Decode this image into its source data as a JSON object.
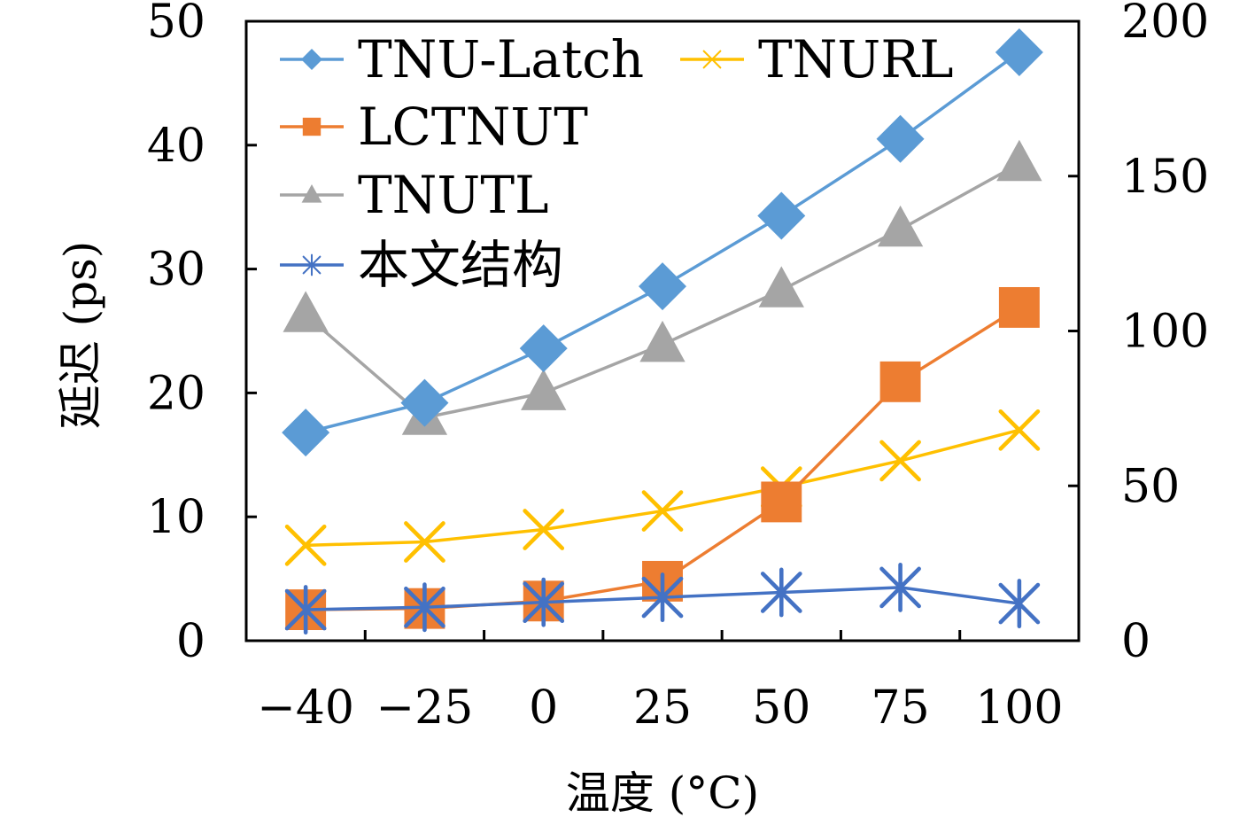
{
  "chart_data": {
    "type": "line",
    "categories": [
      "−40",
      "−25",
      "0",
      "25",
      "50",
      "75",
      "100"
    ],
    "xlabel": "温度 (°C)",
    "ylabel": "延迟 (ps)",
    "ylim": [
      0,
      50
    ],
    "y_ticks": [
      "0",
      "10",
      "20",
      "30",
      "40",
      "50"
    ],
    "y2lim": [
      0,
      200
    ],
    "y2_ticks": [
      "0",
      "50",
      "100",
      "150",
      "200"
    ],
    "grid": false,
    "legend_position": "top-left",
    "series": [
      {
        "name": "TNU-Latch",
        "color": "#5B9BD5",
        "marker": "diamond",
        "axis": "left",
        "values": [
          16.8,
          19.2,
          23.6,
          28.6,
          34.3,
          40.5,
          47.5
        ]
      },
      {
        "name": "TNURL",
        "color": "#FFC000",
        "marker": "x",
        "axis": "right",
        "values": [
          30.8,
          31.9,
          35.9,
          41.9,
          49.6,
          58.1,
          68.0
        ]
      },
      {
        "name": "LCTNUT",
        "color": "#ED7D31",
        "marker": "square",
        "axis": "left",
        "values": [
          2.5,
          2.6,
          3.2,
          4.8,
          11.2,
          20.9,
          26.9
        ]
      },
      {
        "name": "TNUTL",
        "color": "#A5A5A5",
        "marker": "triangle",
        "axis": "left",
        "values": [
          26.3,
          18.0,
          20.0,
          23.9,
          28.3,
          33.2,
          38.5
        ]
      },
      {
        "name": "本文结构",
        "color": "#4472C4",
        "marker": "star",
        "axis": "left",
        "values": [
          2.5,
          2.7,
          3.1,
          3.5,
          3.9,
          4.3,
          3.0
        ]
      }
    ]
  }
}
